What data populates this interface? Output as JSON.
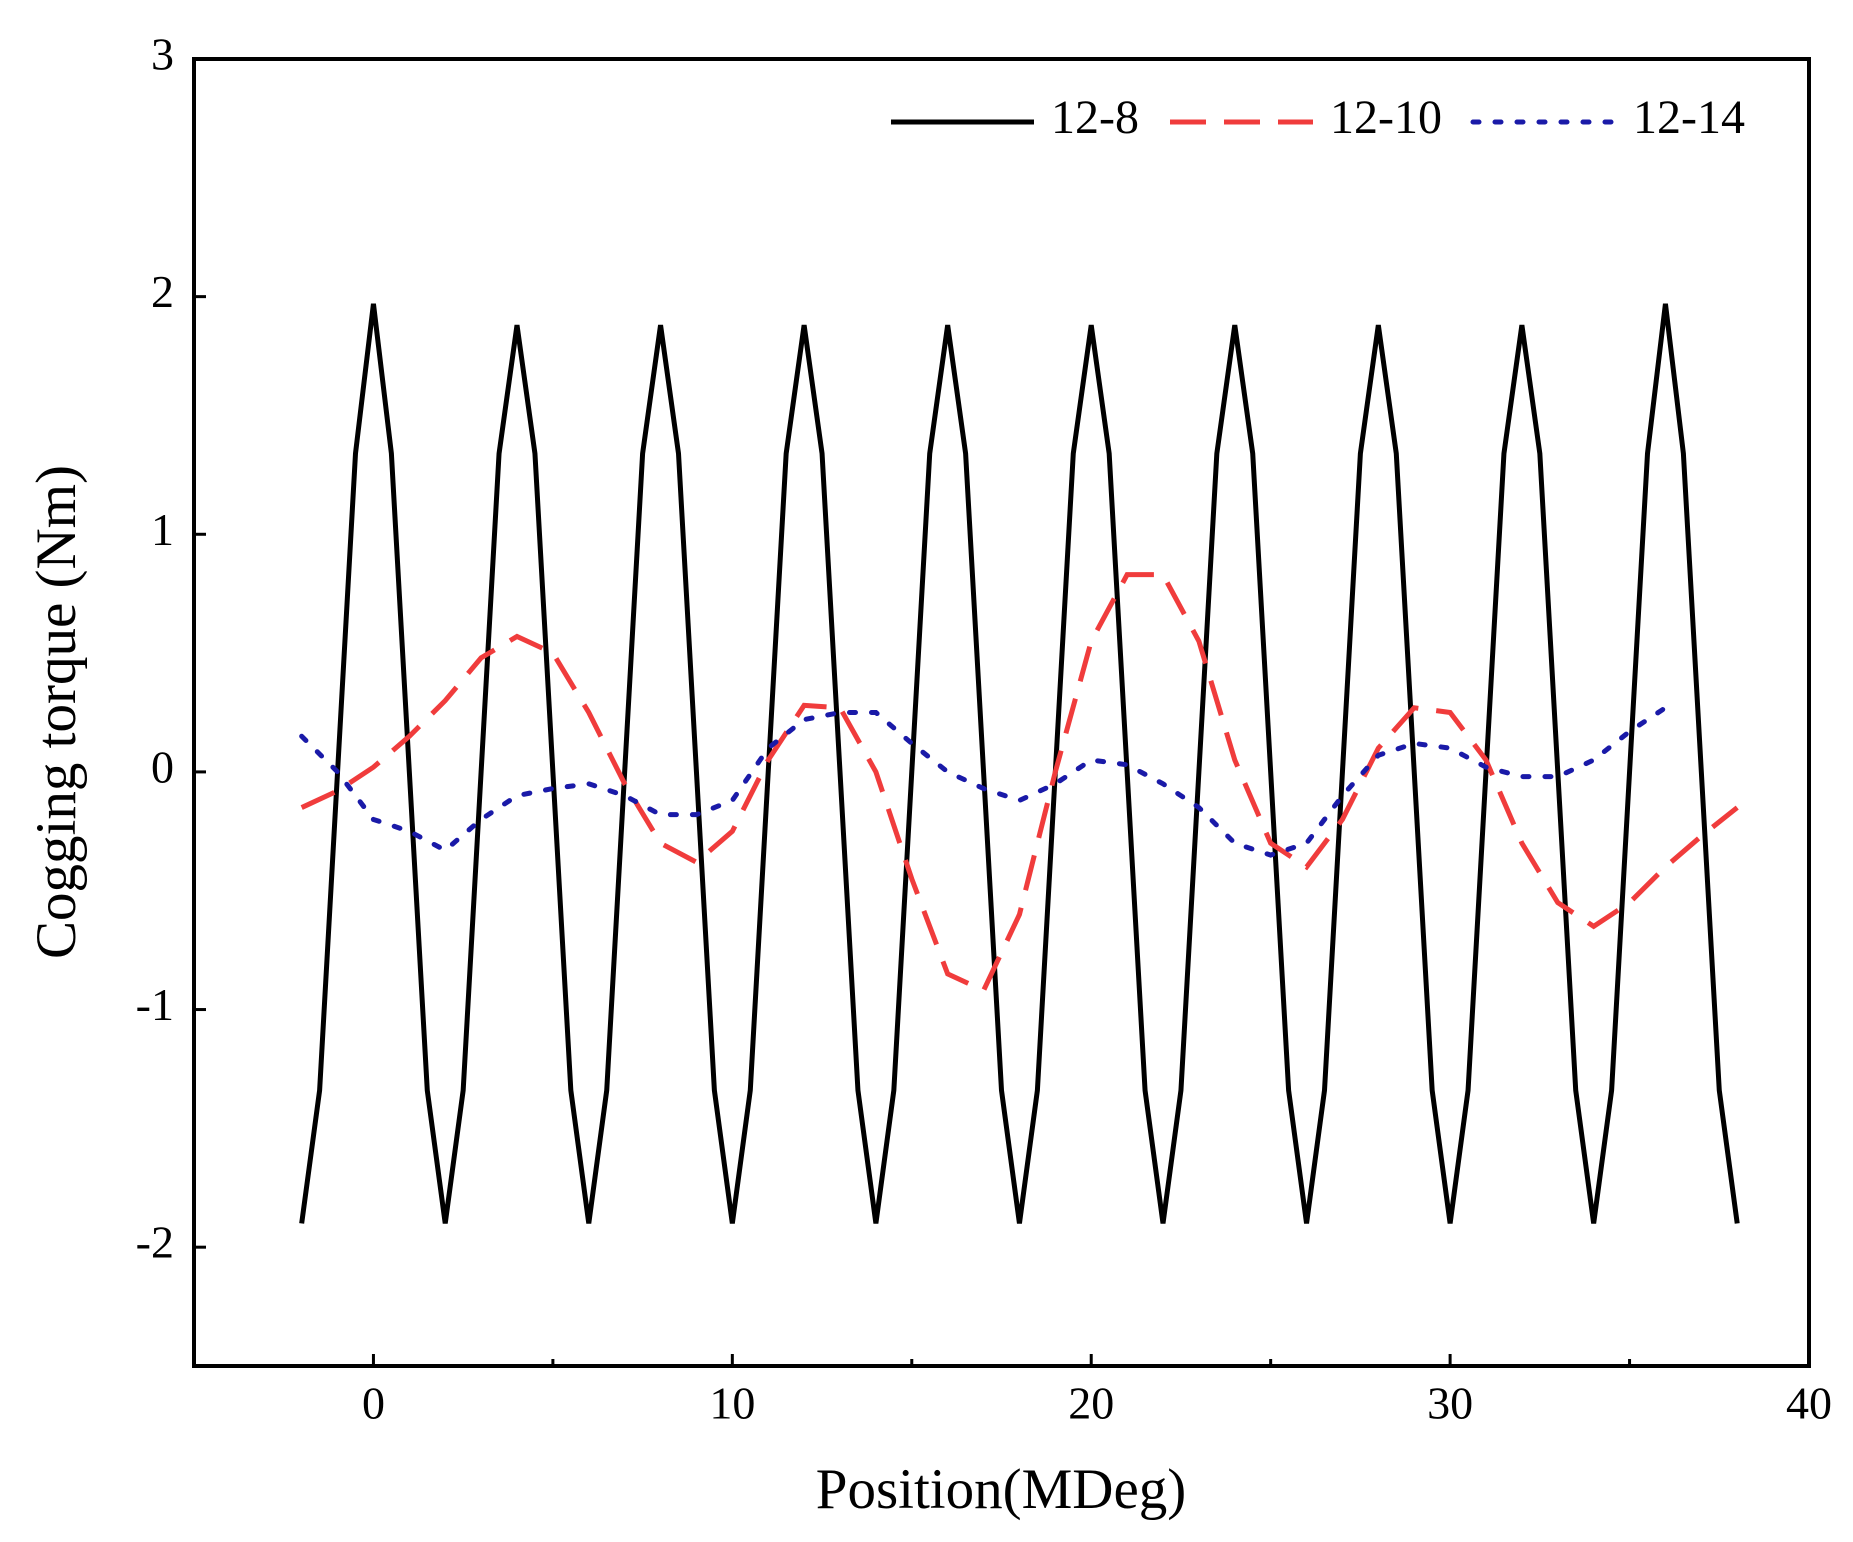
{
  "chart_data": {
    "type": "line",
    "xlabel": "Position(MDeg)",
    "ylabel": "Cogging torque (Nm)",
    "xlim": [
      -5,
      40
    ],
    "xticks": [
      0,
      10,
      20,
      30,
      40
    ],
    "ylim": [
      -2.5,
      3
    ],
    "yticks": [
      -2,
      -1,
      0,
      1,
      2,
      3
    ],
    "legend": "upper right",
    "series": [
      {
        "name": "12-8",
        "color": "#000000",
        "style": "solid",
        "x": [
          -2,
          -1.5,
          -1,
          -0.5,
          0,
          0.5,
          1,
          1.5,
          2,
          2.5,
          3,
          3.5,
          4,
          4.5,
          5,
          5.5,
          6,
          6.5,
          7,
          7.5,
          8,
          8.5,
          9,
          9.5,
          10,
          10.5,
          11,
          11.5,
          12,
          12.5,
          13,
          13.5,
          14,
          14.5,
          15,
          15.5,
          16,
          16.5,
          17,
          17.5,
          18,
          18.5,
          19,
          19.5,
          20,
          20.5,
          21,
          21.5,
          22,
          22.5,
          23,
          23.5,
          24,
          24.5,
          25,
          25.5,
          26,
          26.5,
          27,
          27.5,
          28,
          28.5,
          29,
          29.5,
          30,
          30.5,
          31,
          31.5,
          32,
          32.5,
          33,
          33.5,
          34,
          34.5,
          35,
          35.5,
          36,
          36.5,
          37,
          37.5,
          38
        ],
        "values": [
          -1.9,
          -1.34,
          0,
          1.34,
          1.97,
          1.34,
          0,
          -1.34,
          -1.9,
          -1.34,
          0,
          1.34,
          1.88,
          1.34,
          0,
          -1.34,
          -1.9,
          -1.34,
          0,
          1.34,
          1.88,
          1.34,
          0,
          -1.34,
          -1.9,
          -1.34,
          0,
          1.34,
          1.88,
          1.34,
          0,
          -1.34,
          -1.9,
          -1.34,
          0,
          1.34,
          1.88,
          1.34,
          0,
          -1.34,
          -1.9,
          -1.34,
          0,
          1.34,
          1.88,
          1.34,
          0,
          -1.34,
          -1.9,
          -1.34,
          0,
          1.34,
          1.88,
          1.34,
          0,
          -1.34,
          -1.9,
          -1.34,
          0,
          1.34,
          1.88,
          1.34,
          0,
          -1.34,
          -1.9,
          -1.34,
          0,
          1.34,
          1.88,
          1.34,
          0,
          -1.34,
          -1.9,
          -1.34,
          0,
          1.34,
          1.97,
          1.34,
          0,
          -1.34,
          -1.9
        ]
      },
      {
        "name": "12-10",
        "color": "#f03c3c",
        "style": "dashed",
        "x": [
          -2,
          -1,
          0,
          1,
          2,
          3,
          4,
          5,
          6,
          7,
          8,
          9,
          10,
          11,
          12,
          13,
          14,
          15,
          16,
          17,
          18,
          19,
          20,
          21,
          22,
          23,
          24,
          25,
          26,
          27,
          28,
          29,
          30,
          31,
          32,
          33,
          34,
          35,
          36,
          37,
          38
        ],
        "values": [
          -0.15,
          -0.08,
          0.02,
          0.15,
          0.3,
          0.48,
          0.57,
          0.5,
          0.25,
          -0.05,
          -0.3,
          -0.38,
          -0.25,
          0.05,
          0.28,
          0.27,
          0,
          -0.45,
          -0.85,
          -0.92,
          -0.6,
          0,
          0.55,
          0.83,
          0.83,
          0.55,
          0.05,
          -0.3,
          -0.4,
          -0.2,
          0.1,
          0.27,
          0.25,
          0.05,
          -0.3,
          -0.55,
          -0.65,
          -0.55,
          -0.4,
          -0.27,
          -0.15
        ]
      },
      {
        "name": "12-14",
        "color": "#1a1aa8",
        "style": "dotted",
        "x": [
          -2,
          -1,
          0,
          1,
          2,
          3,
          4,
          5,
          6,
          7,
          8,
          9,
          10,
          11,
          12,
          13,
          14,
          15,
          16,
          17,
          18,
          19,
          20,
          21,
          22,
          23,
          24,
          25,
          26,
          27,
          28,
          29,
          30,
          31,
          32,
          33,
          34,
          35,
          36
        ],
        "values": [
          0.15,
          0,
          -0.2,
          -0.25,
          -0.33,
          -0.2,
          -0.1,
          -0.07,
          -0.05,
          -0.1,
          -0.18,
          -0.18,
          -0.12,
          0.1,
          0.22,
          0.25,
          0.25,
          0.12,
          0,
          -0.07,
          -0.12,
          -0.05,
          0.05,
          0.03,
          -0.05,
          -0.15,
          -0.3,
          -0.35,
          -0.3,
          -0.1,
          0.07,
          0.12,
          0.1,
          0.02,
          -0.02,
          -0.02,
          0.05,
          0.17,
          0.27
        ]
      }
    ]
  }
}
